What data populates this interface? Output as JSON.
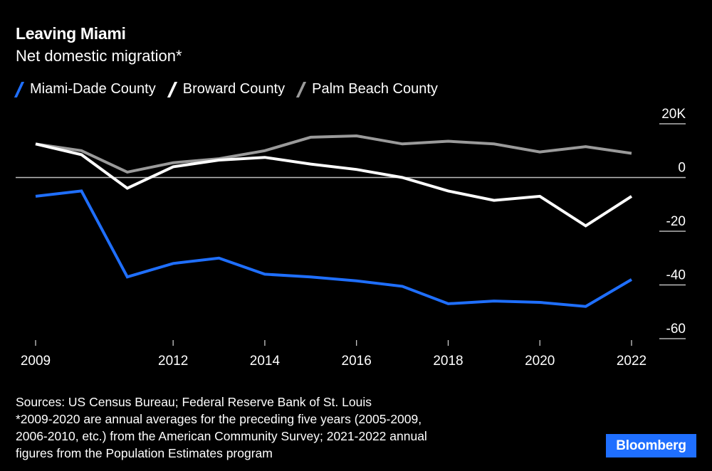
{
  "header": {
    "title": "Leaving Miami",
    "subtitle": "Net domestic migration*"
  },
  "legend": [
    {
      "label": "Miami-Dade County",
      "color": "#1f6fff"
    },
    {
      "label": "Broward County",
      "color": "#ffffff"
    },
    {
      "label": "Palm Beach County",
      "color": "#9a9a9a"
    }
  ],
  "chart_data": {
    "type": "line",
    "title": "Leaving Miami",
    "subtitle": "Net domestic migration*",
    "xlabel": "",
    "ylabel": "",
    "x": [
      2009,
      2010,
      2011,
      2012,
      2013,
      2014,
      2015,
      2016,
      2017,
      2018,
      2019,
      2020,
      2021,
      2022
    ],
    "x_ticks": [
      2009,
      2012,
      2014,
      2016,
      2018,
      2020,
      2022
    ],
    "y_ticks": [
      20,
      0,
      -20,
      -40,
      -60
    ],
    "y_tick_labels": [
      "20K",
      "0",
      "-20",
      "-40",
      "-60"
    ],
    "ylim": [
      -60,
      20
    ],
    "y_units": "thousands",
    "grid": false,
    "zero_line": true,
    "y_axis_position": "right",
    "legend_position": "top-left",
    "series": [
      {
        "name": "Miami-Dade County",
        "color": "#1f6fff",
        "values": [
          -7,
          -5,
          -37,
          -32,
          -30,
          -36,
          -37,
          -38.5,
          -40.5,
          -47,
          -46,
          -46.5,
          -48,
          -38
        ]
      },
      {
        "name": "Broward County",
        "color": "#ffffff",
        "values": [
          12.5,
          8.5,
          -4,
          4,
          6.5,
          7.5,
          5,
          3,
          0,
          -5,
          -8.5,
          -7,
          -18,
          -7
        ]
      },
      {
        "name": "Palm Beach County",
        "color": "#9a9a9a",
        "values": [
          12.5,
          10,
          2,
          5.5,
          7,
          10,
          15,
          15.5,
          12.5,
          13.5,
          12.5,
          9.5,
          11.5,
          9
        ]
      }
    ]
  },
  "footer": {
    "lines": [
      "Sources: US Census Bureau; Federal Reserve Bank of St. Louis",
      "*2009-2020 are annual averages for the preceding five years (2005-2009,",
      "2006-2010, etc.) from the American Community Survey; 2021-2022 annual",
      "figures from the Population Estimates program"
    ]
  },
  "brand": {
    "label": "Bloomberg",
    "color": "#1f6fff"
  }
}
